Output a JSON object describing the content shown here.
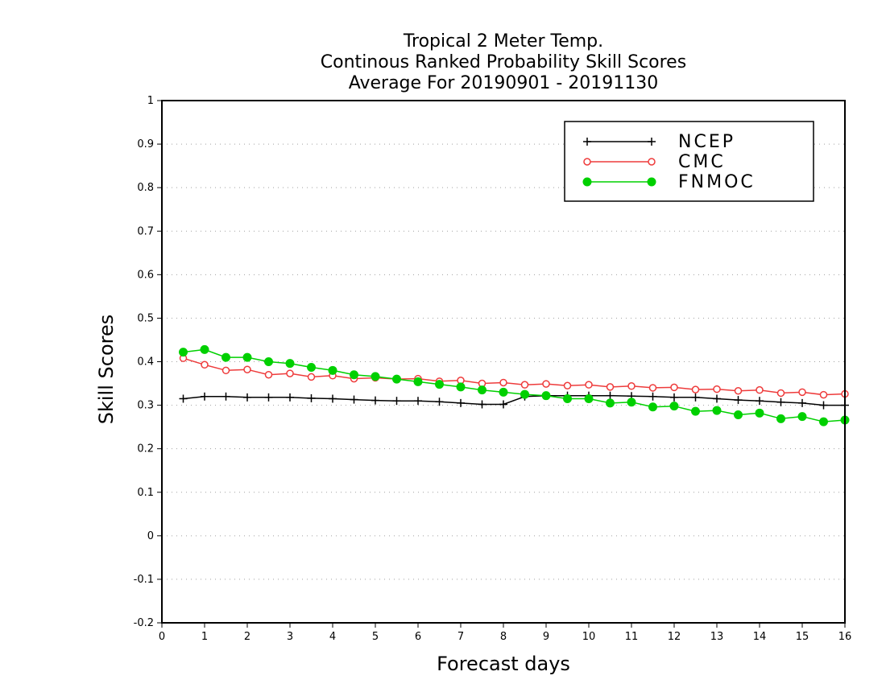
{
  "chart_data": {
    "type": "line",
    "title_lines": [
      "Tropical 2 Meter Temp.",
      "Continous Ranked Probability Skill Scores",
      "Average For 20190901 - 20191130"
    ],
    "xlabel": "Forecast days",
    "ylabel": "Skill Scores",
    "xlim": [
      0,
      16
    ],
    "ylim": [
      -0.2,
      1
    ],
    "x_ticks": [
      "0",
      "1",
      "2",
      "3",
      "4",
      "5",
      "6",
      "7",
      "8",
      "9",
      "10",
      "11",
      "12",
      "13",
      "14",
      "15",
      "16"
    ],
    "y_ticks": [
      "-0.2",
      "-0.1",
      "0",
      "0.1",
      "0.2",
      "0.3",
      "0.4",
      "0.5",
      "0.6",
      "0.7",
      "0.8",
      "0.9",
      "1"
    ],
    "grid": "horizontal dotted",
    "legend_position": "top-right",
    "x": [
      0.5,
      1,
      1.5,
      2,
      2.5,
      3,
      3.5,
      4,
      4.5,
      5,
      5.5,
      6,
      6.5,
      7,
      7.5,
      8,
      8.5,
      9,
      9.5,
      10,
      10.5,
      11,
      11.5,
      12,
      12.5,
      13,
      13.5,
      14,
      14.5,
      15,
      15.5,
      16
    ],
    "series": [
      {
        "name": "NCEP",
        "color": "#000000",
        "marker": "plus",
        "values": [
          0.315,
          0.32,
          0.32,
          0.318,
          0.318,
          0.318,
          0.316,
          0.315,
          0.313,
          0.311,
          0.31,
          0.31,
          0.308,
          0.305,
          0.302,
          0.302,
          0.32,
          0.322,
          0.322,
          0.322,
          0.322,
          0.321,
          0.32,
          0.318,
          0.318,
          0.315,
          0.312,
          0.31,
          0.307,
          0.305,
          0.3,
          0.3
        ]
      },
      {
        "name": "CMC",
        "color": "#ee3b3b",
        "marker": "open-circle",
        "values": [
          0.408,
          0.393,
          0.38,
          0.382,
          0.37,
          0.373,
          0.365,
          0.368,
          0.361,
          0.363,
          0.36,
          0.361,
          0.355,
          0.357,
          0.35,
          0.352,
          0.347,
          0.349,
          0.345,
          0.347,
          0.342,
          0.344,
          0.34,
          0.341,
          0.336,
          0.337,
          0.333,
          0.335,
          0.328,
          0.33,
          0.324,
          0.326
        ]
      },
      {
        "name": "FNMOC",
        "color": "#00d000",
        "marker": "filled-circle",
        "values": [
          0.422,
          0.428,
          0.41,
          0.41,
          0.4,
          0.396,
          0.387,
          0.38,
          0.37,
          0.366,
          0.36,
          0.354,
          0.348,
          0.342,
          0.335,
          0.33,
          0.325,
          0.322,
          0.315,
          0.315,
          0.305,
          0.307,
          0.296,
          0.298,
          0.286,
          0.288,
          0.278,
          0.282,
          0.269,
          0.274,
          0.262,
          0.266
        ]
      }
    ]
  }
}
